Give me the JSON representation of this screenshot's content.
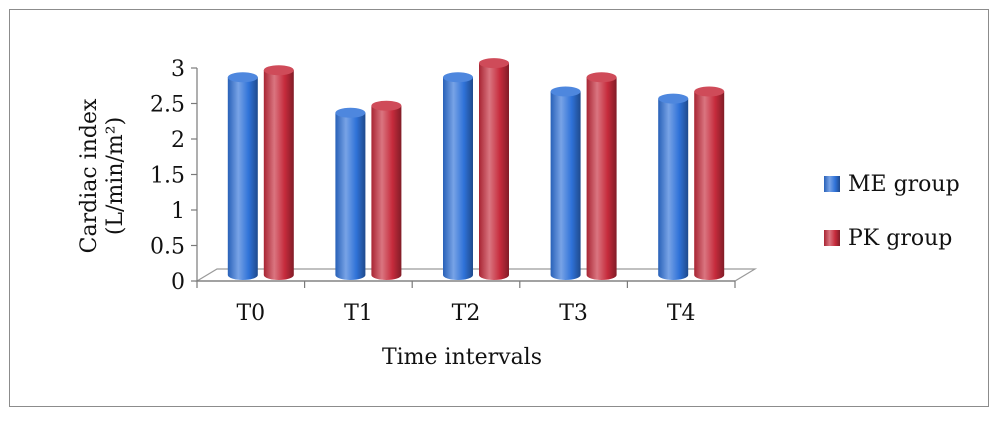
{
  "chart_data": {
    "type": "bar",
    "title": "",
    "xlabel": "Time intervals",
    "ylabel_lines": [
      "Cardiac index",
      "(L/min/m²)"
    ],
    "ylim": [
      0,
      3
    ],
    "yticks": [
      0,
      0.5,
      1,
      1.5,
      2,
      2.5,
      3
    ],
    "ytick_labels": [
      "0",
      "0.5",
      "1",
      "1.5",
      "2",
      "2.5",
      "3"
    ],
    "categories": [
      "T0",
      "T1",
      "T2",
      "T3",
      "T4"
    ],
    "series": [
      {
        "name": "ME group",
        "values": [
          2.7,
          2.2,
          2.7,
          2.5,
          2.4
        ],
        "color": "#2f72d8"
      },
      {
        "name": "PK group",
        "values": [
          2.8,
          2.3,
          2.9,
          2.7,
          2.5
        ],
        "color": "#c62b3c"
      }
    ],
    "grid": false,
    "legend_position": "right"
  }
}
